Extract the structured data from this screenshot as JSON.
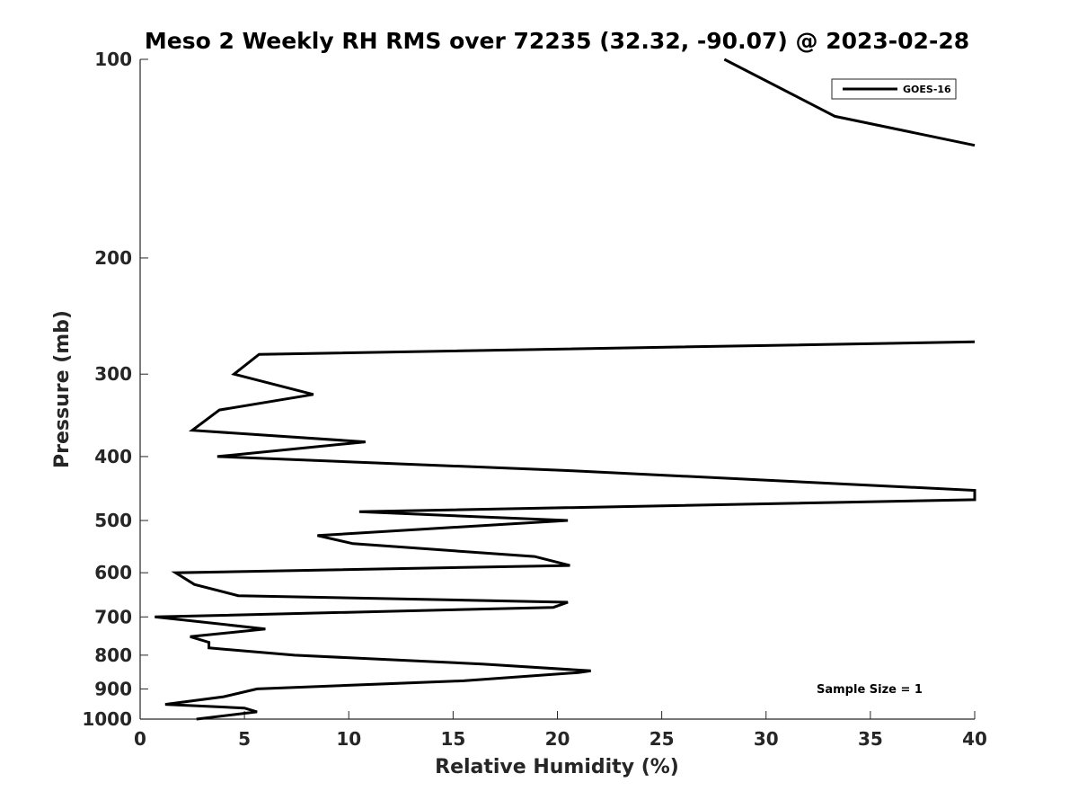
{
  "chart_data": {
    "type": "line",
    "title": "Meso 2 Weekly RH RMS over 72235 (32.32, -90.07) @ 2023-02-28",
    "xlabel": "Relative Humidity (%)",
    "ylabel": "Pressure (mb)",
    "xlim": [
      0,
      40
    ],
    "ylim": [
      1000,
      100
    ],
    "y_scale": "log",
    "x_ticks": [
      0,
      5,
      10,
      15,
      20,
      25,
      30,
      35,
      40
    ],
    "y_ticks": [
      100,
      200,
      300,
      400,
      500,
      600,
      700,
      800,
      900,
      1000
    ],
    "grid": false,
    "legend": {
      "location": "top-right",
      "entries": [
        "GOES-16"
      ]
    },
    "annotation": "Sample Size = 1",
    "series": [
      {
        "name": "GOES-16",
        "color": "#000000",
        "x": [
          2.7,
          5.6,
          5.0,
          1.2,
          4.0,
          5.6,
          15.5,
          21.0,
          21.6,
          16.4,
          7.4,
          3.3,
          3.3,
          2.4,
          6.0,
          0.7,
          19.8,
          20.5,
          4.7,
          2.6,
          1.7,
          20.6,
          18.9,
          10.2,
          8.5,
          20.5,
          10.5,
          40.0,
          40.0,
          20.5,
          3.7,
          10.8,
          2.5,
          3.8,
          8.3,
          4.5,
          5.7,
          40.0,
          null,
          40.0,
          33.3,
          28.0
        ],
        "y": [
          1000,
          975,
          962,
          950,
          925,
          900,
          875,
          850,
          845,
          825,
          800,
          780,
          765,
          750,
          730,
          700,
          677,
          665,
          650,
          625,
          600,
          585,
          567,
          542,
          527,
          500,
          485,
          465,
          450,
          420,
          400,
          380,
          365,
          340,
          322,
          300,
          280,
          268,
          null,
          135,
          122,
          100
        ]
      }
    ]
  }
}
